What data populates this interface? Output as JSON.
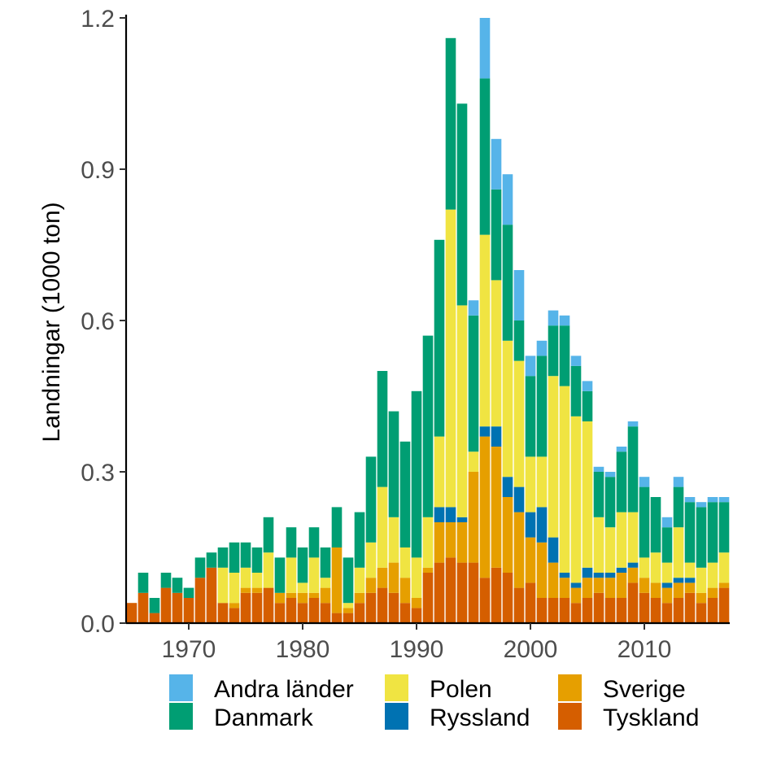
{
  "chart_data": {
    "type": "bar",
    "stacked": true,
    "ylabel": "Landningar (1000 ton)",
    "xlabel": "",
    "title": "",
    "ylim": [
      0,
      1.2
    ],
    "xlim": [
      1964.5,
      2017.5
    ],
    "yticks": [
      "0.0",
      "0.3",
      "0.6",
      "0.9",
      "1.2"
    ],
    "xticks": [
      "1970",
      "1980",
      "1990",
      "2000",
      "2010"
    ],
    "legend_position": "bottom",
    "years": [
      1965,
      1966,
      1967,
      1968,
      1969,
      1970,
      1971,
      1972,
      1973,
      1974,
      1975,
      1976,
      1977,
      1978,
      1979,
      1980,
      1981,
      1982,
      1983,
      1984,
      1985,
      1986,
      1987,
      1988,
      1989,
      1990,
      1991,
      1992,
      1993,
      1994,
      1995,
      1996,
      1997,
      1998,
      1999,
      2000,
      2001,
      2002,
      2003,
      2004,
      2005,
      2006,
      2007,
      2008,
      2009,
      2010,
      2011,
      2012,
      2013,
      2014,
      2015,
      2016,
      2017
    ],
    "series": [
      {
        "name": "Tyskland",
        "color": "#D55E00",
        "values": [
          0.04,
          0.06,
          0.02,
          0.07,
          0.06,
          0.05,
          0.09,
          0.11,
          0.04,
          0.03,
          0.06,
          0.06,
          0.07,
          0.04,
          0.05,
          0.04,
          0.05,
          0.04,
          0.02,
          0.02,
          0.04,
          0.06,
          0.07,
          0.06,
          0.04,
          0.03,
          0.1,
          0.12,
          0.13,
          0.12,
          0.12,
          0.09,
          0.11,
          0.1,
          0.07,
          0.08,
          0.05,
          0.05,
          0.05,
          0.04,
          0.05,
          0.06,
          0.05,
          0.05,
          0.08,
          0.06,
          0.05,
          0.04,
          0.05,
          0.06,
          0.04,
          0.05,
          0.07
        ]
      },
      {
        "name": "Sverige",
        "color": "#E69F00",
        "values": [
          0,
          0,
          0,
          0,
          0,
          0,
          0,
          0,
          0,
          0.01,
          0.01,
          0.01,
          0,
          0.02,
          0.01,
          0.02,
          0.01,
          0.03,
          0.13,
          0.01,
          0.02,
          0.03,
          0.04,
          0.06,
          0.05,
          0.02,
          0.01,
          0.08,
          0.07,
          0.08,
          0.18,
          0.28,
          0.24,
          0.15,
          0.15,
          0.09,
          0.11,
          0.07,
          0.04,
          0.03,
          0.04,
          0.03,
          0.04,
          0.05,
          0.03,
          0.03,
          0.03,
          0.03,
          0.03,
          0.02,
          0.02,
          0.02,
          0.01
        ]
      },
      {
        "name": "Ryssland",
        "color": "#0072B2",
        "values": [
          0,
          0,
          0,
          0,
          0,
          0,
          0,
          0,
          0,
          0,
          0,
          0,
          0,
          0,
          0,
          0,
          0,
          0,
          0,
          0,
          0,
          0,
          0,
          0,
          0,
          0,
          0,
          0.03,
          0.03,
          0.01,
          0,
          0.02,
          0.04,
          0.04,
          0.05,
          0.05,
          0.07,
          0.05,
          0.01,
          0.01,
          0.02,
          0.01,
          0.01,
          0.01,
          0.01,
          0,
          0,
          0.01,
          0.01,
          0.01,
          0,
          0,
          0
        ]
      },
      {
        "name": "Polen",
        "color": "#F0E442",
        "values": [
          0,
          0,
          0,
          0,
          0,
          0,
          0,
          0,
          0.07,
          0.06,
          0.04,
          0.03,
          0.07,
          0,
          0.07,
          0.02,
          0.07,
          0.02,
          0,
          0.01,
          0.05,
          0.07,
          0.16,
          0.09,
          0.06,
          0.08,
          0.1,
          0.14,
          0.59,
          0.42,
          0.04,
          0.38,
          0.29,
          0.27,
          0.25,
          0.11,
          0.1,
          0.32,
          0.37,
          0.33,
          0.29,
          0.11,
          0.09,
          0.11,
          0.1,
          0.04,
          0.06,
          0.04,
          0.1,
          0.03,
          0.05,
          0.05,
          0.06
        ]
      },
      {
        "name": "Danmark",
        "color": "#009E73",
        "values": [
          0,
          0.04,
          0.03,
          0.03,
          0.03,
          0.02,
          0.04,
          0.03,
          0.04,
          0.06,
          0.05,
          0.05,
          0.07,
          0.07,
          0.06,
          0.07,
          0.06,
          0.06,
          0.08,
          0.09,
          0.11,
          0.17,
          0.23,
          0.21,
          0.21,
          0.33,
          0.36,
          0.39,
          0.34,
          0.4,
          0.27,
          0.31,
          0.18,
          0.23,
          0.08,
          0.16,
          0.2,
          0.1,
          0.12,
          0.1,
          0.06,
          0.09,
          0.1,
          0.12,
          0.17,
          0.14,
          0.11,
          0.07,
          0.08,
          0.12,
          0.12,
          0.12,
          0.1
        ]
      },
      {
        "name": "Andra länder",
        "color": "#56B4E9",
        "values": [
          0,
          0,
          0,
          0,
          0,
          0,
          0,
          0,
          0,
          0,
          0,
          0,
          0,
          0,
          0,
          0,
          0,
          0,
          0,
          0,
          0,
          0,
          0,
          0,
          0,
          0,
          0,
          0,
          0,
          0,
          0.03,
          0.12,
          0.1,
          0.1,
          0.1,
          0.04,
          0.03,
          0.03,
          0.02,
          0.02,
          0.02,
          0.01,
          0.01,
          0.01,
          0.01,
          0.02,
          0,
          0.02,
          0.02,
          0.01,
          0.01,
          0.01,
          0.01
        ]
      }
    ],
    "legend": [
      {
        "name": "Andra länder",
        "color": "#56B4E9"
      },
      {
        "name": "Danmark",
        "color": "#009E73"
      },
      {
        "name": "Polen",
        "color": "#F0E442"
      },
      {
        "name": "Ryssland",
        "color": "#0072B2"
      },
      {
        "name": "Sverige",
        "color": "#E69F00"
      },
      {
        "name": "Tyskland",
        "color": "#D55E00"
      }
    ]
  }
}
